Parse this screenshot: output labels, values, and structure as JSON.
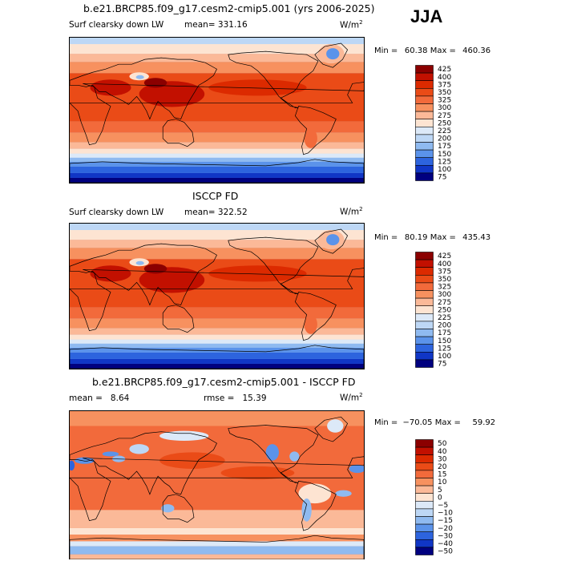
{
  "season": "JJA",
  "panels": [
    {
      "title": "b.e21.BRCP85.f09_g17.cesm2-cmip5.001 (yrs 2006-2025)",
      "left_label": "Surf clearsky down LW",
      "stat_label": "mean= 331.16",
      "units_base": "W/m",
      "units_exp": "2",
      "min_label": "Min =",
      "min_value": "60.38",
      "max_label": "Max =",
      "max_value": "460.36",
      "colorbar_levels": [
        "425",
        "400",
        "375",
        "350",
        "325",
        "300",
        "275",
        "250",
        "225",
        "200",
        "175",
        "150",
        "125",
        "100",
        "75"
      ],
      "colorbar_colors": [
        "#8b0000",
        "#c21000",
        "#dc2a00",
        "#ea4b17",
        "#f26a3b",
        "#f7915f",
        "#fbb998",
        "#fde4d2",
        "#dce9f8",
        "#bdd7f5",
        "#8fbaf0",
        "#5b93ea",
        "#2d64de",
        "#1036c6",
        "#00007f"
      ],
      "map_type": "absolute"
    },
    {
      "title": "ISCCP FD",
      "left_label": "Surf clearsky down LW",
      "stat_label": "mean= 322.52",
      "units_base": "W/m",
      "units_exp": "2",
      "min_label": "Min =",
      "min_value": "80.19",
      "max_label": "Max =",
      "max_value": "435.43",
      "colorbar_levels": [
        "425",
        "400",
        "375",
        "350",
        "325",
        "300",
        "275",
        "250",
        "225",
        "200",
        "175",
        "150",
        "125",
        "100",
        "75"
      ],
      "colorbar_colors": [
        "#8b0000",
        "#c21000",
        "#dc2a00",
        "#ea4b17",
        "#f26a3b",
        "#f7915f",
        "#fbb998",
        "#fde4d2",
        "#dce9f8",
        "#bdd7f5",
        "#8fbaf0",
        "#5b93ea",
        "#2d64de",
        "#1036c6",
        "#00007f"
      ],
      "map_type": "absolute"
    },
    {
      "title": "b.e21.BRCP85.f09_g17.cesm2-cmip5.001 - ISCCP FD",
      "left_label": "mean =   8.64",
      "stat_label": "rmse =   15.39",
      "units_base": "W/m",
      "units_exp": "2",
      "min_label": "Min =",
      "min_value": "−70.05",
      "max_label": "Max =",
      "max_value": "59.92",
      "colorbar_levels": [
        "50",
        "40",
        "30",
        "20",
        "15",
        "10",
        "5",
        "0",
        "−5",
        "−10",
        "−15",
        "−20",
        "−30",
        "−40",
        "−50"
      ],
      "colorbar_colors": [
        "#8b0000",
        "#c21000",
        "#dc2a00",
        "#ea4b17",
        "#f26a3b",
        "#f7915f",
        "#fbb998",
        "#fde4d2",
        "#dce9f8",
        "#bdd7f5",
        "#8fbaf0",
        "#5b93ea",
        "#2d64de",
        "#1036c6",
        "#00007f"
      ],
      "map_type": "difference"
    }
  ]
}
